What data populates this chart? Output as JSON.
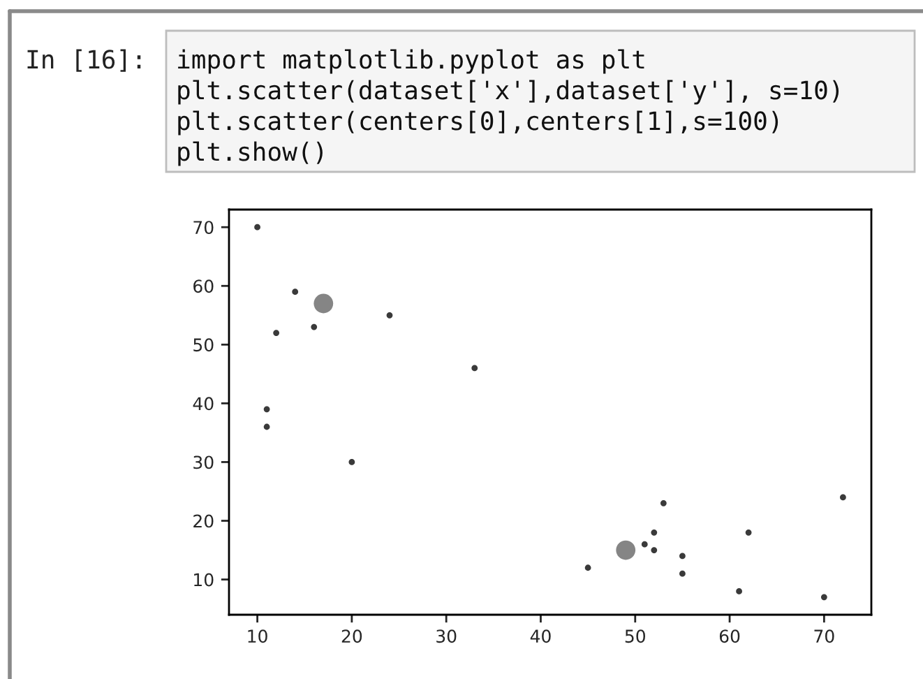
{
  "chart_data": {
    "type": "scatter",
    "annotations": [
      "In [16]:",
      "import matplotlib.pyplot as plt",
      "plt.scatter(dataset['x'],dataset['y'], s=10)",
      "plt.scatter(centers[0],centers[1],s=100)",
      "plt.show()"
    ],
    "series": [
      {
        "color": "#3a3a3a",
        "x": [
          10,
          14,
          12,
          16,
          11,
          11,
          20,
          24,
          33,
          45,
          51,
          52,
          52,
          53,
          55,
          55,
          61,
          62,
          70,
          72
        ],
        "values": [
          70,
          59,
          52,
          53,
          39,
          36,
          30,
          55,
          46,
          12,
          16,
          18,
          15,
          23,
          14,
          11,
          8,
          18,
          7,
          24
        ]
      },
      {
        "color": "#858585",
        "x": [
          17,
          49
        ],
        "values": [
          57,
          15
        ]
      }
    ],
    "xlim": [
      7,
      75
    ],
    "ylim": [
      4,
      73
    ],
    "xticks": [
      10,
      20,
      30,
      40,
      50,
      60,
      70
    ],
    "yticks": [
      10,
      20,
      30,
      40,
      50,
      60,
      70
    ],
    "grid": false,
    "legend": false
  }
}
